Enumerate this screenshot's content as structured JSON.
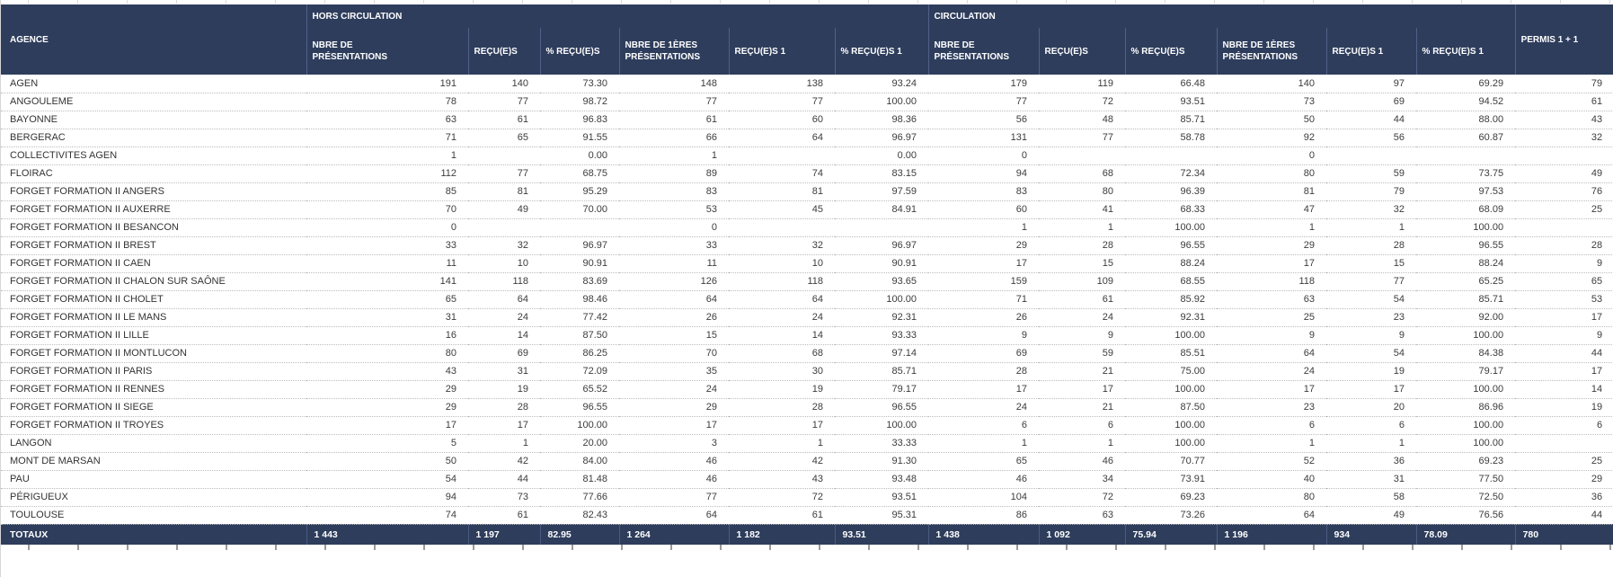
{
  "colors": {
    "header-bg": "#2e3d5c",
    "header-divider": "#50608a",
    "footer-divider": "#4a5a80",
    "row-border": "#bdbdbd",
    "body-text": "#3c3c3c"
  },
  "table": {
    "agency_header": "AGENCE",
    "groups": [
      {
        "label": "HORS CIRCULATION"
      },
      {
        "label": "CIRCULATION"
      }
    ],
    "permis_header": "PERMIS 1 + 1",
    "sub_headers": [
      "NBRE DE PRÉSENTATIONS",
      "REÇU(E)S",
      "% REÇU(E)S",
      "NBRE DE 1ÈRES PRÉSENTATIONS",
      "REÇU(E)S 1",
      "% REÇU(E)S 1",
      "NBRE DE PRÉSENTATIONS",
      "REÇU(E)S",
      "% REÇU(E)S",
      "NBRE DE 1ÈRES PRÉSENTATIONS",
      "REÇU(E)S 1",
      "% REÇU(E)S 1"
    ],
    "rows": [
      {
        "name": "AGEN",
        "values": [
          "191",
          "140",
          "73.30",
          "148",
          "138",
          "93.24",
          "179",
          "119",
          "66.48",
          "140",
          "97",
          "69.29",
          "79"
        ]
      },
      {
        "name": "ANGOULEME",
        "values": [
          "78",
          "77",
          "98.72",
          "77",
          "77",
          "100.00",
          "77",
          "72",
          "93.51",
          "73",
          "69",
          "94.52",
          "61"
        ]
      },
      {
        "name": "BAYONNE",
        "values": [
          "63",
          "61",
          "96.83",
          "61",
          "60",
          "98.36",
          "56",
          "48",
          "85.71",
          "50",
          "44",
          "88.00",
          "43"
        ]
      },
      {
        "name": "BERGERAC",
        "values": [
          "71",
          "65",
          "91.55",
          "66",
          "64",
          "96.97",
          "131",
          "77",
          "58.78",
          "92",
          "56",
          "60.87",
          "32"
        ]
      },
      {
        "name": "COLLECTIVITES AGEN",
        "values": [
          "1",
          "",
          "0.00",
          "1",
          "",
          "0.00",
          "0",
          "",
          "",
          "0",
          "",
          "",
          ""
        ]
      },
      {
        "name": "FLOIRAC",
        "values": [
          "112",
          "77",
          "68.75",
          "89",
          "74",
          "83.15",
          "94",
          "68",
          "72.34",
          "80",
          "59",
          "73.75",
          "49"
        ]
      },
      {
        "name": "FORGET FORMATION II ANGERS",
        "values": [
          "85",
          "81",
          "95.29",
          "83",
          "81",
          "97.59",
          "83",
          "80",
          "96.39",
          "81",
          "79",
          "97.53",
          "76"
        ]
      },
      {
        "name": "FORGET FORMATION II AUXERRE",
        "values": [
          "70",
          "49",
          "70.00",
          "53",
          "45",
          "84.91",
          "60",
          "41",
          "68.33",
          "47",
          "32",
          "68.09",
          "25"
        ]
      },
      {
        "name": "FORGET FORMATION II BESANCON",
        "values": [
          "0",
          "",
          "",
          "0",
          "",
          "",
          "1",
          "1",
          "100.00",
          "1",
          "1",
          "100.00",
          ""
        ]
      },
      {
        "name": "FORGET FORMATION II BREST",
        "values": [
          "33",
          "32",
          "96.97",
          "33",
          "32",
          "96.97",
          "29",
          "28",
          "96.55",
          "29",
          "28",
          "96.55",
          "28"
        ]
      },
      {
        "name": "FORGET FORMATION II CAEN",
        "values": [
          "11",
          "10",
          "90.91",
          "11",
          "10",
          "90.91",
          "17",
          "15",
          "88.24",
          "17",
          "15",
          "88.24",
          "9"
        ]
      },
      {
        "name": "FORGET FORMATION II CHALON SUR SAÔNE",
        "values": [
          "141",
          "118",
          "83.69",
          "126",
          "118",
          "93.65",
          "159",
          "109",
          "68.55",
          "118",
          "77",
          "65.25",
          "65"
        ]
      },
      {
        "name": "FORGET FORMATION II CHOLET",
        "values": [
          "65",
          "64",
          "98.46",
          "64",
          "64",
          "100.00",
          "71",
          "61",
          "85.92",
          "63",
          "54",
          "85.71",
          "53"
        ]
      },
      {
        "name": "FORGET FORMATION II LE MANS",
        "values": [
          "31",
          "24",
          "77.42",
          "26",
          "24",
          "92.31",
          "26",
          "24",
          "92.31",
          "25",
          "23",
          "92.00",
          "17"
        ]
      },
      {
        "name": "FORGET FORMATION II LILLE",
        "values": [
          "16",
          "14",
          "87.50",
          "15",
          "14",
          "93.33",
          "9",
          "9",
          "100.00",
          "9",
          "9",
          "100.00",
          "9"
        ]
      },
      {
        "name": "FORGET FORMATION II MONTLUCON",
        "values": [
          "80",
          "69",
          "86.25",
          "70",
          "68",
          "97.14",
          "69",
          "59",
          "85.51",
          "64",
          "54",
          "84.38",
          "44"
        ]
      },
      {
        "name": "FORGET FORMATION II PARIS",
        "values": [
          "43",
          "31",
          "72.09",
          "35",
          "30",
          "85.71",
          "28",
          "21",
          "75.00",
          "24",
          "19",
          "79.17",
          "17"
        ]
      },
      {
        "name": "FORGET FORMATION II RENNES",
        "values": [
          "29",
          "19",
          "65.52",
          "24",
          "19",
          "79.17",
          "17",
          "17",
          "100.00",
          "17",
          "17",
          "100.00",
          "14"
        ]
      },
      {
        "name": "FORGET FORMATION II SIEGE",
        "values": [
          "29",
          "28",
          "96.55",
          "29",
          "28",
          "96.55",
          "24",
          "21",
          "87.50",
          "23",
          "20",
          "86.96",
          "19"
        ]
      },
      {
        "name": "FORGET FORMATION II TROYES",
        "values": [
          "17",
          "17",
          "100.00",
          "17",
          "17",
          "100.00",
          "6",
          "6",
          "100.00",
          "6",
          "6",
          "100.00",
          "6"
        ]
      },
      {
        "name": "LANGON",
        "values": [
          "5",
          "1",
          "20.00",
          "3",
          "1",
          "33.33",
          "1",
          "1",
          "100.00",
          "1",
          "1",
          "100.00",
          ""
        ]
      },
      {
        "name": "MONT DE MARSAN",
        "values": [
          "50",
          "42",
          "84.00",
          "46",
          "42",
          "91.30",
          "65",
          "46",
          "70.77",
          "52",
          "36",
          "69.23",
          "25"
        ]
      },
      {
        "name": "PAU",
        "values": [
          "54",
          "44",
          "81.48",
          "46",
          "43",
          "93.48",
          "46",
          "34",
          "73.91",
          "40",
          "31",
          "77.50",
          "29"
        ]
      },
      {
        "name": "PÉRIGUEUX",
        "values": [
          "94",
          "73",
          "77.66",
          "77",
          "72",
          "93.51",
          "104",
          "72",
          "69.23",
          "80",
          "58",
          "72.50",
          "36"
        ]
      },
      {
        "name": "TOULOUSE",
        "values": [
          "74",
          "61",
          "82.43",
          "64",
          "61",
          "95.31",
          "86",
          "63",
          "73.26",
          "64",
          "49",
          "76.56",
          "44"
        ]
      }
    ],
    "totals": {
      "label": "TOTAUX",
      "values": [
        "1 443",
        "1 197",
        "82.95",
        "1 264",
        "1 182",
        "93.51",
        "1 438",
        "1 092",
        "75.94",
        "1 196",
        "934",
        "78.09",
        "780"
      ]
    }
  }
}
